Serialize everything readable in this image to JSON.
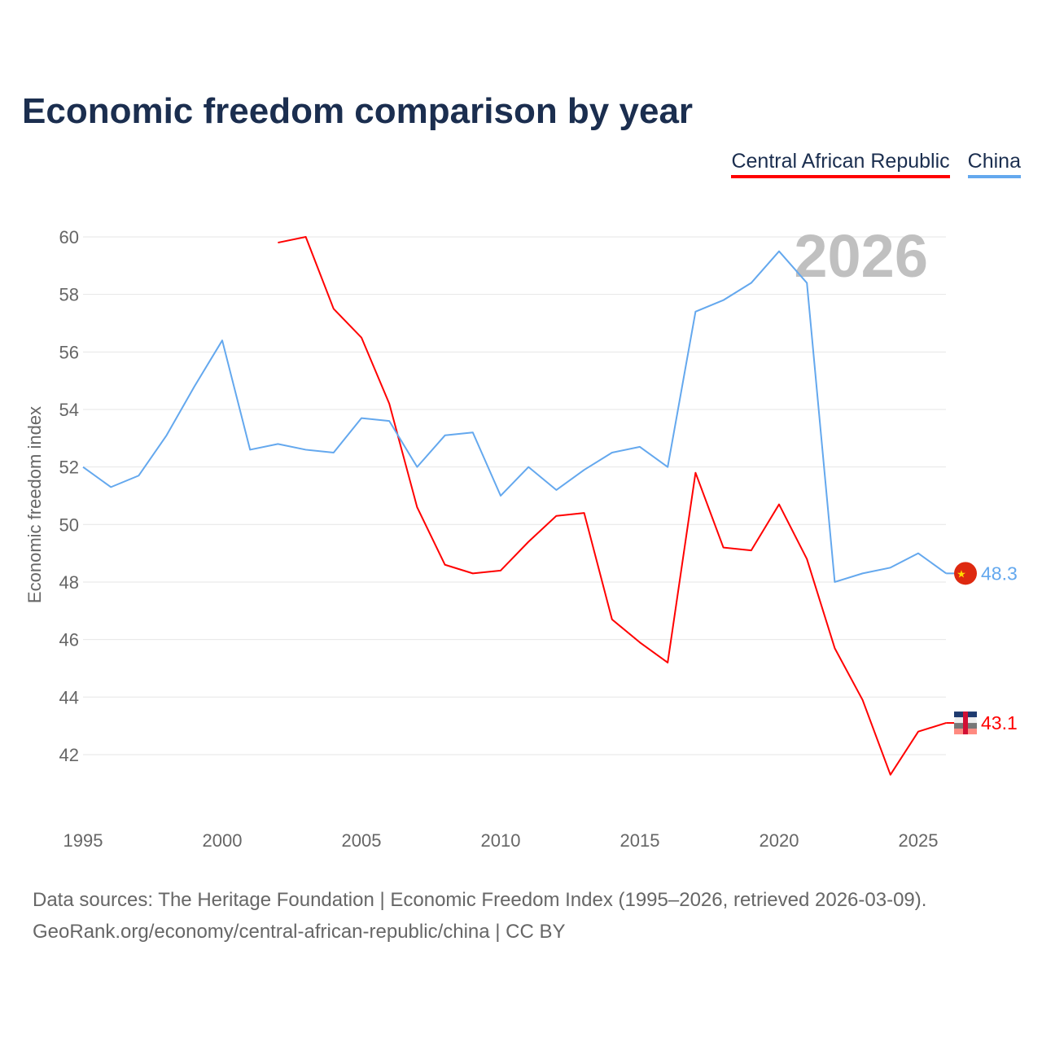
{
  "chart_data": {
    "type": "line",
    "title": "Economic freedom comparison by year",
    "ylabel": "Economic freedom index",
    "xlabel": "",
    "ylim": [
      40,
      61
    ],
    "xlim": [
      1995,
      2026
    ],
    "yticks": [
      42,
      44,
      46,
      48,
      50,
      52,
      54,
      56,
      58,
      60
    ],
    "xticks": [
      1995,
      2000,
      2005,
      2010,
      2015,
      2020,
      2025
    ],
    "grid": true,
    "legend_placement": "top-right",
    "year_watermark": "2026",
    "series": [
      {
        "name": "Central African Republic",
        "color": "#ff0000",
        "end_label": "43.1",
        "x": [
          2002,
          2003,
          2004,
          2005,
          2006,
          2007,
          2008,
          2009,
          2010,
          2011,
          2012,
          2013,
          2014,
          2015,
          2016,
          2017,
          2018,
          2019,
          2020,
          2021,
          2022,
          2023,
          2024,
          2025,
          2026
        ],
        "values": [
          59.8,
          60.0,
          57.5,
          56.5,
          54.2,
          50.6,
          48.6,
          48.3,
          48.4,
          49.4,
          50.3,
          50.4,
          46.7,
          45.9,
          45.2,
          51.8,
          49.2,
          49.1,
          50.7,
          48.8,
          45.7,
          43.9,
          41.3,
          42.8,
          43.1
        ]
      },
      {
        "name": "China",
        "color": "#64a8ee",
        "end_label": "48.3",
        "x": [
          1995,
          1996,
          1997,
          1998,
          1999,
          2000,
          2001,
          2002,
          2003,
          2004,
          2005,
          2006,
          2007,
          2008,
          2009,
          2010,
          2011,
          2012,
          2013,
          2014,
          2015,
          2016,
          2017,
          2018,
          2019,
          2020,
          2021,
          2022,
          2023,
          2024,
          2025,
          2026
        ],
        "values": [
          52.0,
          51.3,
          51.7,
          53.1,
          54.8,
          56.4,
          52.6,
          52.8,
          52.6,
          52.5,
          53.7,
          53.6,
          52.0,
          53.1,
          53.2,
          51.0,
          52.0,
          51.2,
          51.9,
          52.5,
          52.7,
          52.0,
          57.4,
          57.8,
          58.4,
          59.5,
          58.4,
          48.0,
          48.3,
          48.5,
          49.0,
          48.3
        ]
      }
    ]
  },
  "footer": {
    "line1": "Data sources: The Heritage Foundation | Economic Freedom Index (1995–2026, retrieved 2026-03-09).",
    "line2": "GeoRank.org/economy/central-african-republic/china | CC BY"
  }
}
